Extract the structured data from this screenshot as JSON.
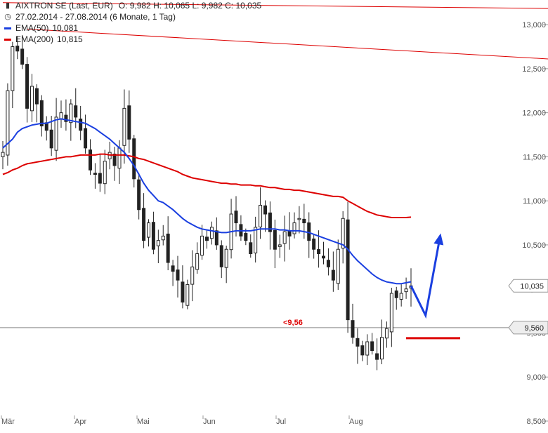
{
  "header": {
    "title": "AIXTRON SE (Last, EUR)",
    "ohlc": "O: 9,982  H: 10,065  L: 9,982  C: 10,035",
    "range": "27.02.2014 - 27.08.2014 (6 Monate, 1 Tag)",
    "ema50_label": "EMA(50)",
    "ema50_value": "10,081",
    "ema200_label": "EMA(200)",
    "ema200_value": "10,815",
    "ohlc_icon": "candlestick-icon",
    "range_icon": "clock-icon"
  },
  "colors": {
    "candle": "#222222",
    "ema50": "#1a3fe0",
    "ema200": "#dd0000",
    "trendline": "#dd0000",
    "forecast_arrow": "#1a3fe0",
    "support_line": "#888888",
    "target_line": "#dd0000"
  },
  "chart_data": {
    "type": "candlestick",
    "x_labels": [
      "Mär",
      "Apr",
      "Mai",
      "Jun",
      "Jul",
      "Aug"
    ],
    "y_ticks": [
      8.5,
      9.0,
      9.5,
      10.0,
      10.5,
      11.0,
      11.5,
      12.0,
      12.5,
      13.0
    ],
    "y_tick_labels": [
      "8,500",
      "9,000",
      "9,500",
      "10,000",
      "10,500",
      "11,000",
      "11,500",
      "12,000",
      "12,500",
      "13,000"
    ],
    "ylim": [
      8.5,
      13.2
    ],
    "grid": false,
    "last_price_tag": "10,035",
    "last_price": 10.035,
    "support_tag": "9,560",
    "support_level": 9.56,
    "support_annotation": "<9,56",
    "close": [
      11.55,
      12.25,
      12.75,
      12.7,
      12.55,
      12.05,
      12.3,
      12.1,
      11.85,
      11.8,
      11.6,
      11.95,
      12.0,
      11.9,
      12.1,
      11.95,
      11.8,
      11.6,
      11.35,
      11.3,
      11.2,
      11.45,
      11.55,
      11.4,
      11.6,
      12.05,
      11.7,
      11.25,
      10.9,
      10.55,
      10.75,
      10.45,
      10.55,
      10.6,
      10.3,
      10.2,
      10.1,
      9.85,
      10.05,
      10.25,
      10.4,
      10.6,
      10.55,
      10.7,
      10.5,
      10.25,
      10.45,
      10.85,
      10.75,
      10.6,
      10.55,
      10.4,
      10.7,
      10.95,
      10.85,
      10.65,
      10.45,
      10.5,
      10.65,
      10.6,
      10.75,
      10.8,
      10.75,
      10.55,
      10.45,
      10.4,
      10.35,
      10.25,
      10.1,
      10.45,
      10.8,
      9.65,
      9.45,
      9.35,
      9.25,
      9.4,
      9.3,
      9.2,
      9.45,
      9.55,
      9.95,
      9.9,
      9.95,
      10.0,
      10.035
    ],
    "ema50": [
      11.6,
      11.65,
      11.7,
      11.78,
      11.82,
      11.84,
      11.86,
      11.87,
      11.88,
      11.88,
      11.9,
      11.92,
      11.93,
      11.92,
      11.91,
      11.9,
      11.89,
      11.88,
      11.85,
      11.82,
      11.78,
      11.74,
      11.7,
      11.65,
      11.6,
      11.55,
      11.48,
      11.4,
      11.3,
      11.2,
      11.12,
      11.06,
      11.0,
      10.98,
      10.94,
      10.9,
      10.85,
      10.8,
      10.76,
      10.73,
      10.7,
      10.68,
      10.67,
      10.66,
      10.65,
      10.64,
      10.64,
      10.65,
      10.66,
      10.66,
      10.66,
      10.66,
      10.67,
      10.68,
      10.68,
      10.68,
      10.68,
      10.67,
      10.67,
      10.66,
      10.66,
      10.66,
      10.65,
      10.64,
      10.62,
      10.6,
      10.58,
      10.56,
      10.54,
      10.52,
      10.5,
      10.45,
      10.38,
      10.32,
      10.27,
      10.22,
      10.17,
      10.13,
      10.1,
      10.08,
      10.07,
      10.06,
      10.06,
      10.07,
      10.081
    ],
    "ema200": [
      11.3,
      11.32,
      11.35,
      11.37,
      11.4,
      11.42,
      11.43,
      11.44,
      11.45,
      11.46,
      11.47,
      11.48,
      11.49,
      11.5,
      11.5,
      11.51,
      11.52,
      11.52,
      11.52,
      11.52,
      11.53,
      11.53,
      11.52,
      11.52,
      11.52,
      11.52,
      11.51,
      11.5,
      11.48,
      11.47,
      11.45,
      11.43,
      11.41,
      11.39,
      11.37,
      11.35,
      11.33,
      11.3,
      11.28,
      11.26,
      11.25,
      11.24,
      11.23,
      11.22,
      11.21,
      11.2,
      11.2,
      11.19,
      11.19,
      11.18,
      11.18,
      11.18,
      11.17,
      11.17,
      11.16,
      11.15,
      11.15,
      11.14,
      11.13,
      11.13,
      11.12,
      11.12,
      11.11,
      11.1,
      11.09,
      11.08,
      11.07,
      11.06,
      11.05,
      11.05,
      11.04,
      11.0,
      10.97,
      10.94,
      10.91,
      10.88,
      10.86,
      10.84,
      10.83,
      10.82,
      10.81,
      10.81,
      10.81,
      10.81,
      10.815
    ],
    "trendlines": [
      {
        "from": [
          0,
          13.25
        ],
        "to": [
          84,
          13.2
        ]
      },
      {
        "from": [
          5,
          12.95
        ],
        "to": [
          84,
          12.7
        ]
      }
    ],
    "forecast_path": [
      [
        84,
        10.035
      ],
      [
        87,
        9.7
      ],
      [
        90,
        10.6
      ]
    ],
    "target_level": 9.56
  }
}
